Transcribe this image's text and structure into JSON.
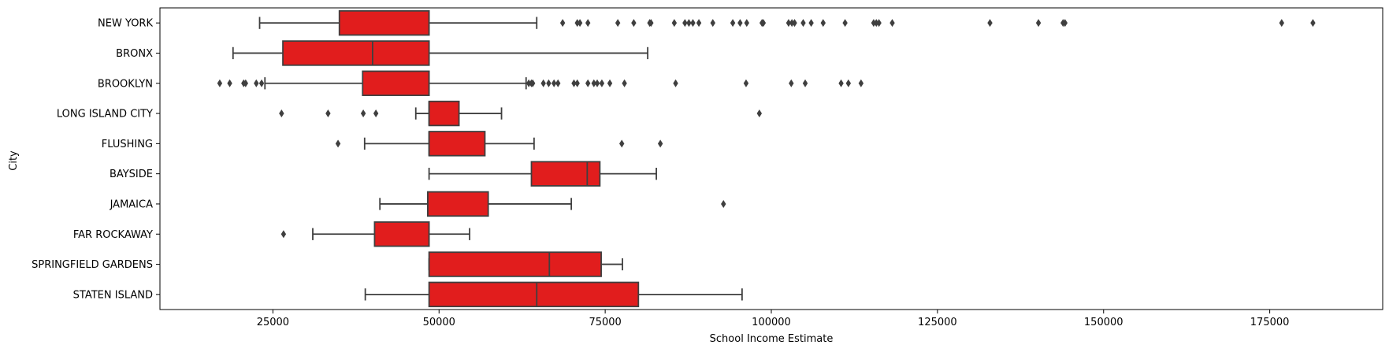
{
  "chart_data": {
    "type": "boxplot",
    "orientation": "horizontal",
    "xlabel": "School Income Estimate",
    "ylabel": "City",
    "xlim": [
      8000,
      192000
    ],
    "xticks": [
      25000,
      50000,
      75000,
      100000,
      125000,
      150000,
      175000
    ],
    "grid": false,
    "box_color": "#e11d1d",
    "line_color": "#3f3f3f",
    "categories": [
      "NEW YORK",
      "BRONX",
      "BROOKLYN",
      "LONG ISLAND CITY",
      "FLUSHING",
      "BAYSIDE",
      "JAMAICA",
      "FAR ROCKAWAY",
      "SPRINGFIELD GARDENS",
      "STATEN ISLAND"
    ],
    "series": [
      {
        "category": "NEW YORK",
        "whislo": 23000,
        "q1": 35000,
        "med": 48500,
        "q3": 48500,
        "whishi": 64700,
        "fliers": [
          68600,
          70800,
          71200,
          72400,
          76900,
          79300,
          81700,
          81900,
          85400,
          87000,
          87600,
          88200,
          89100,
          91200,
          94200,
          95300,
          96300,
          98600,
          98800,
          102600,
          103100,
          103500,
          104800,
          106000,
          107800,
          111100,
          115400,
          115800,
          116200,
          118200,
          132900,
          140200,
          143900,
          144200,
          176800,
          181500
        ]
      },
      {
        "category": "BRONX",
        "whislo": 19000,
        "q1": 26500,
        "med": 40000,
        "q3": 48500,
        "whishi": 81400,
        "fliers": []
      },
      {
        "category": "BROOKLYN",
        "whislo": 23800,
        "q1": 38500,
        "med": 48500,
        "q3": 48500,
        "whishi": 63100,
        "fliers": [
          17000,
          18500,
          20600,
          20900,
          22500,
          23300,
          63500,
          63900,
          64100,
          65700,
          66500,
          67300,
          67900,
          70300,
          70800,
          72400,
          73300,
          73800,
          74500,
          75700,
          77900,
          85600,
          96200,
          103000,
          105100,
          110500,
          111600,
          113500
        ]
      },
      {
        "category": "LONG ISLAND CITY",
        "whislo": 46500,
        "q1": 48500,
        "med": 48500,
        "q3": 53000,
        "whishi": 59400,
        "fliers": [
          26300,
          33300,
          38600,
          40500,
          98200
        ]
      },
      {
        "category": "FLUSHING",
        "whislo": 38800,
        "q1": 48500,
        "med": 48500,
        "q3": 56900,
        "whishi": 64300,
        "fliers": [
          34800,
          77500,
          83300
        ]
      },
      {
        "category": "BAYSIDE",
        "whislo": 48500,
        "q1": 63900,
        "med": 72300,
        "q3": 74200,
        "whishi": 82700,
        "fliers": []
      },
      {
        "category": "JAMAICA",
        "whislo": 41100,
        "q1": 48300,
        "med": 48300,
        "q3": 57400,
        "whishi": 69900,
        "fliers": [
          92800
        ]
      },
      {
        "category": "FAR ROCKAWAY",
        "whislo": 31000,
        "q1": 40300,
        "med": 48500,
        "q3": 48500,
        "whishi": 54600,
        "fliers": [
          26600
        ]
      },
      {
        "category": "SPRINGFIELD GARDENS",
        "whislo": 48500,
        "q1": 48500,
        "med": 66600,
        "q3": 74400,
        "whishi": 77600,
        "fliers": []
      },
      {
        "category": "STATEN ISLAND",
        "whislo": 38900,
        "q1": 48500,
        "med": 64700,
        "q3": 80000,
        "whishi": 95600,
        "fliers": []
      }
    ]
  }
}
